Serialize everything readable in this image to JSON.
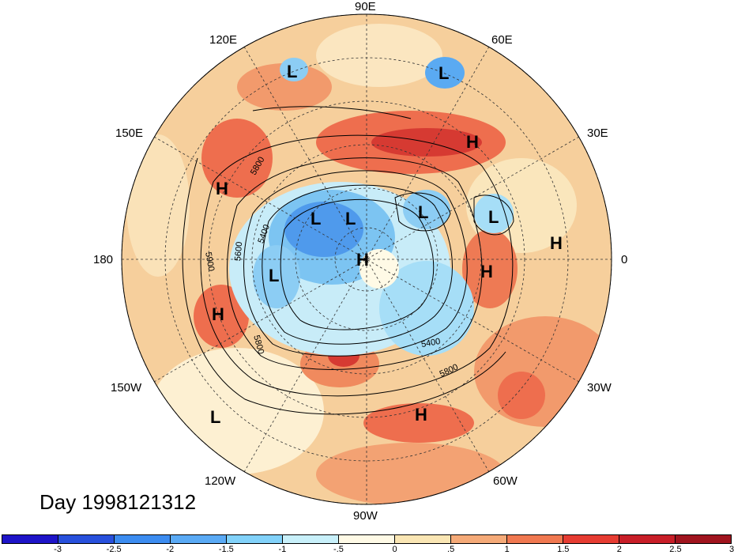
{
  "title": "Day 1998121312",
  "longitude_labels": {
    "lon_90e": "90E",
    "lon_60e": "60E",
    "lon_120e": "120E",
    "lon_150e": "150E",
    "lon_30e": "30E",
    "lon_180": "180",
    "lon_0": "0",
    "lon_150w": "150W",
    "lon_30w": "30W",
    "lon_120w": "120W",
    "lon_60w": "60W",
    "lon_90w": "90W"
  },
  "pressure_centers": {
    "L1": "L",
    "L2": "L",
    "L3": "L",
    "L4": "L",
    "L5": "L",
    "L6": "L",
    "L7": "L",
    "L8": "L",
    "H1": "H",
    "H2": "H",
    "H3": "H",
    "H4": "H",
    "H5": "H",
    "H6": "H",
    "H7": "H"
  },
  "contour_labels": {
    "c1": "5800",
    "c2": "5400",
    "c3": "5600",
    "c4": "5900",
    "c5": "5800",
    "c6": "5400",
    "c7": "5800"
  },
  "colorbar": {
    "colors": [
      "#1e14c8",
      "#2850dc",
      "#3c8cf0",
      "#5aaaf5",
      "#82d2fa",
      "#c8f0fa",
      "#fffae6",
      "#fae6b4",
      "#f5aa78",
      "#f07850",
      "#e63c32",
      "#c81e28",
      "#a0141e"
    ],
    "tick_labels": [
      "-3",
      "-2.5",
      "-2",
      "-1.5",
      "-1",
      "-.5",
      "0",
      ".5",
      "1",
      "1.5",
      "2",
      "2.5",
      "3"
    ]
  }
}
